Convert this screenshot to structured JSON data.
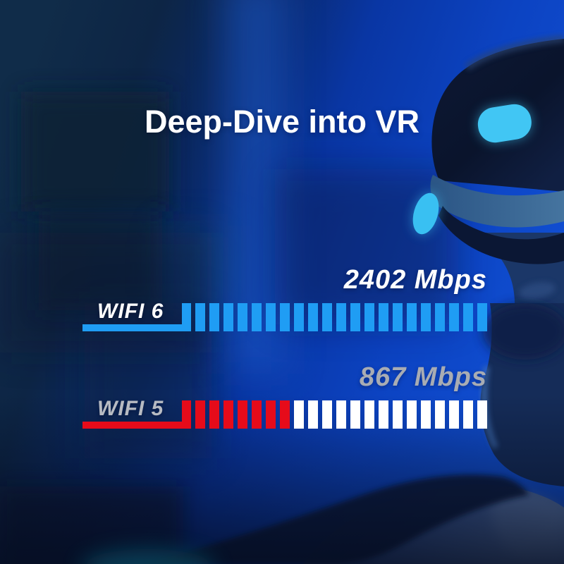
{
  "title": "Deep-Dive into VR",
  "chart_data": {
    "type": "bar",
    "orientation": "horizontal",
    "style": "segmented-progress",
    "title": "Deep-Dive into VR",
    "unit": "Mbps",
    "categories": [
      "WIFI 6",
      "WIFI 5"
    ],
    "values": [
      2402,
      867
    ],
    "max_value": 2402,
    "segments_per_bar": 21,
    "legend": "none",
    "rows": [
      {
        "label": "WIFI 6",
        "value": 2402,
        "value_label": "2402 Mbps",
        "filled_segments": 21,
        "bar_color": "#1f9df4",
        "empty_color": "#1f9df4",
        "underline_color": "#1f9df4",
        "label_color": "#ffffff",
        "value_color": "#ffffff"
      },
      {
        "label": "WIFI 5",
        "value": 867,
        "value_label": "867 Mbps",
        "filled_segments": 7,
        "bar_color": "#e60b1a",
        "empty_color": "#ffffff",
        "underline_color": "#e60b1a",
        "label_color": "#b7bbc2",
        "value_color": "#a8acb3"
      }
    ]
  },
  "background": {
    "scene": "Photo of a person wearing a VR headset in a blue-lit room",
    "elements": [
      "vr-headset",
      "headset-tracking-lights",
      "person-face-silhouette",
      "shoulder-and-shirt",
      "bokeh-shapes",
      "light-streak"
    ],
    "palette": {
      "base_dark_navy": "#0d2545",
      "base_royal_blue": "#0c43c2",
      "tracking_light_cyan": "#41c6f4",
      "headband_slate": "#45749f",
      "vignette": "#040b1d"
    }
  }
}
